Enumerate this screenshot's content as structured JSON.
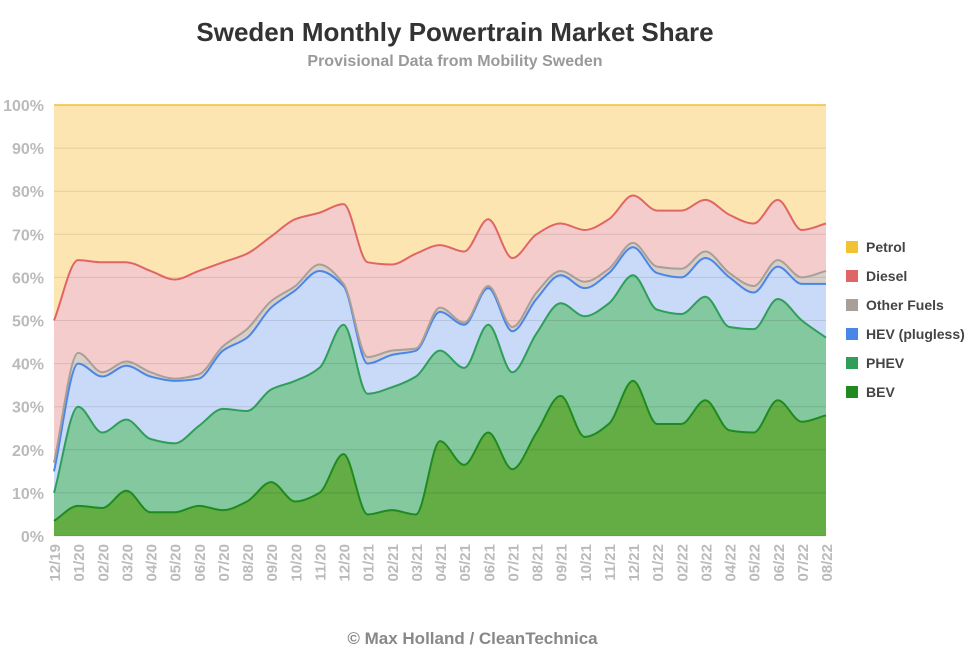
{
  "title": "Sweden Monthly Powertrain Market Share",
  "subtitle": "Provisional Data from Mobility Sweden",
  "footer": "© Max Holland / CleanTechnica",
  "chart_data": {
    "type": "area",
    "stacked": true,
    "categories": [
      "12/19",
      "01/20",
      "02/20",
      "03/20",
      "04/20",
      "05/20",
      "06/20",
      "07/20",
      "08/20",
      "09/20",
      "10/20",
      "11/20",
      "12/20",
      "01/21",
      "02/21",
      "03/21",
      "04/21",
      "05/21",
      "06/21",
      "07/21",
      "08/21",
      "09/21",
      "10/21",
      "11/21",
      "12/21",
      "01/22",
      "02/22",
      "03/22",
      "04/22",
      "05/22",
      "06/22",
      "07/22",
      "08/22"
    ],
    "ylim": [
      0,
      100
    ],
    "yticks": [
      "0%",
      "10%",
      "20%",
      "30%",
      "40%",
      "50%",
      "60%",
      "70%",
      "80%",
      "90%",
      "100%"
    ],
    "legend_position": "right",
    "grid": true,
    "series": [
      {
        "name": "BEV",
        "color": "#1f8a1f",
        "fill": "#63ad44",
        "values": [
          3.5,
          7,
          6.5,
          10.5,
          5.5,
          5.5,
          7,
          6,
          8,
          12.5,
          8,
          10,
          19,
          5,
          6,
          5,
          22,
          16.5,
          24,
          15.5,
          24,
          32.5,
          23,
          26,
          36,
          26,
          26,
          31.5,
          24.5,
          24,
          31.5,
          26.5,
          28
        ]
      },
      {
        "name": "PHEV",
        "color": "#2e9e59",
        "fill": "#84c89f",
        "values": [
          10,
          30,
          24,
          27,
          22.5,
          21.5,
          25.5,
          29.5,
          29,
          34,
          36,
          39,
          49,
          33,
          34.5,
          37,
          43,
          39,
          49,
          38,
          47,
          54,
          51,
          54,
          60.5,
          52.5,
          51.5,
          55.5,
          48.5,
          48,
          55,
          50,
          46
        ]
      },
      {
        "name": "HEV (plugless)",
        "color": "#4a86e8",
        "fill": "#c9daf8",
        "values": [
          15,
          40,
          37,
          39.5,
          37,
          36,
          36.5,
          43,
          46,
          53,
          57,
          61.5,
          58,
          40,
          42,
          43,
          52,
          49,
          57.5,
          47.5,
          55,
          60.5,
          57.5,
          61,
          67,
          61,
          60,
          64.5,
          60,
          56.5,
          62.5,
          58.5,
          58.5
        ]
      },
      {
        "name": "Other Fuels",
        "color": "#a89f98",
        "fill": "#d9cfc8",
        "values": [
          17,
          42.5,
          38,
          40.5,
          38,
          36.5,
          37.5,
          44,
          48,
          54.5,
          58,
          63,
          58.5,
          41.5,
          43,
          43.5,
          53,
          49.5,
          58,
          48.5,
          56.5,
          61.5,
          59,
          62,
          68,
          62.5,
          62,
          66,
          61,
          58,
          64,
          60,
          61.5
        ]
      },
      {
        "name": "Diesel",
        "color": "#e06666",
        "fill": "#f4cccc",
        "values": [
          50,
          64,
          63.5,
          63.5,
          61.5,
          59.5,
          61.5,
          63.5,
          65.5,
          69.5,
          73.5,
          75,
          77,
          63.5,
          63,
          65.5,
          67.5,
          66,
          73.5,
          64.5,
          70,
          72.5,
          71,
          73.5,
          79,
          75.5,
          75.5,
          78,
          74.5,
          72.5,
          78,
          71,
          72.5
        ]
      },
      {
        "name": "Petrol",
        "color": "#f1c232",
        "fill": "#fce5b0",
        "values": [
          100,
          100,
          100,
          100,
          100,
          100,
          100,
          100,
          100,
          100,
          100,
          100,
          100,
          100,
          100,
          100,
          100,
          100,
          100,
          100,
          100,
          100,
          100,
          100,
          100,
          100,
          100,
          100,
          100,
          100,
          100,
          100,
          100
        ]
      }
    ]
  }
}
